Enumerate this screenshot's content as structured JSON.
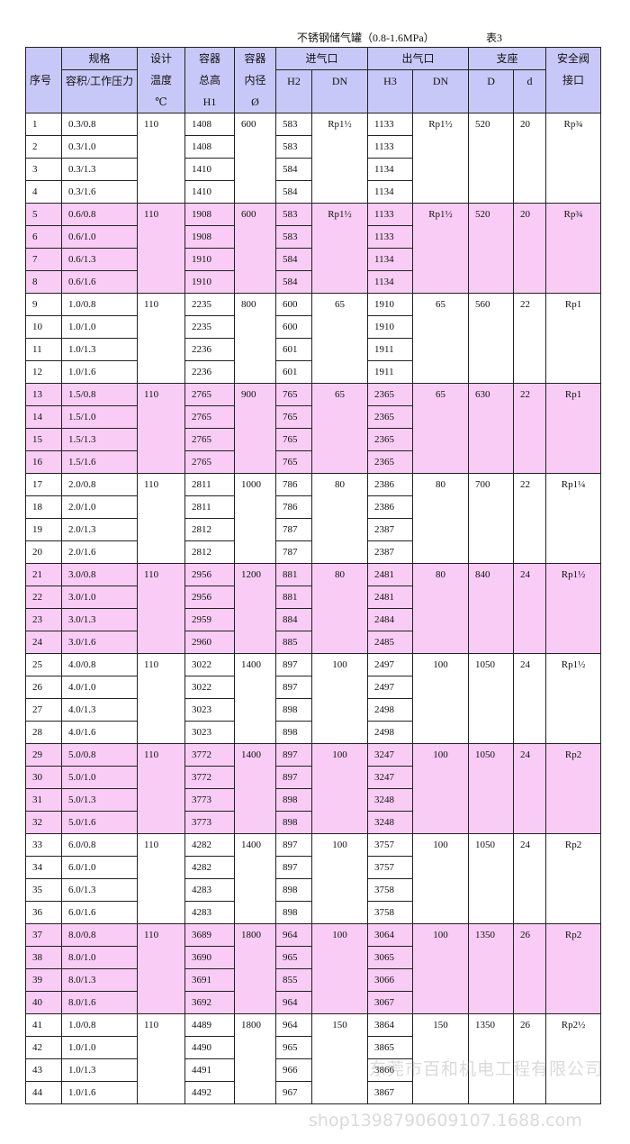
{
  "title": "不锈钢储气罐（0.8-1.6MPa）",
  "table_no": "表3",
  "header": {
    "seq": "序号",
    "spec_top": "规格",
    "spec": "容积/工作压力",
    "temp": [
      "设计",
      "温度",
      "℃"
    ],
    "height": [
      "容器",
      "总高",
      "H1"
    ],
    "diameter": [
      "容器",
      "内径",
      "Ø"
    ],
    "inlet": "进气口",
    "inlet_h": "H2",
    "inlet_dn": "DN",
    "outlet": "出气口",
    "outlet_h": "H3",
    "outlet_dn": "DN",
    "support": "支座",
    "support_D": "D",
    "support_d": "d",
    "valve": [
      "安全阀",
      "接口"
    ]
  },
  "colors": {
    "header": "#c8c8f8",
    "pink": "#f8ccf4"
  },
  "groups": [
    {
      "temp": "110",
      "dia": "600",
      "dn_in": "Rp1½",
      "dn_out": "Rp1½",
      "D": "520",
      "d": "20",
      "valve": "Rp¾",
      "rows": [
        [
          "1",
          "0.3/0.8",
          "1408",
          "583",
          "1133"
        ],
        [
          "2",
          "0.3/1.0",
          "1408",
          "583",
          "1133"
        ],
        [
          "3",
          "0.3/1.3",
          "1410",
          "584",
          "1134"
        ],
        [
          "4",
          "0.3/1.6",
          "1410",
          "584",
          "1134"
        ]
      ]
    },
    {
      "temp": "110",
      "dia": "600",
      "dn_in": "Rp1½",
      "dn_out": "Rp1½",
      "D": "520",
      "d": "20",
      "valve": "Rp¾",
      "rows": [
        [
          "5",
          "0.6/0.8",
          "1908",
          "583",
          "1133"
        ],
        [
          "6",
          "0.6/1.0",
          "1908",
          "583",
          "1133"
        ],
        [
          "7",
          "0.6/1.3",
          "1910",
          "584",
          "1134"
        ],
        [
          "8",
          "0.6/1.6",
          "1910",
          "584",
          "1134"
        ]
      ]
    },
    {
      "temp": "110",
      "dia": "800",
      "dn_in": "65",
      "dn_out": "65",
      "D": "560",
      "d": "22",
      "valve": "Rp1",
      "rows": [
        [
          "9",
          "1.0/0.8",
          "2235",
          "600",
          "1910"
        ],
        [
          "10",
          "1.0/1.0",
          "2235",
          "600",
          "1910"
        ],
        [
          "11",
          "1.0/1.3",
          "2236",
          "601",
          "1911"
        ],
        [
          "12",
          "1.0/1.6",
          "2236",
          "601",
          "1911"
        ]
      ]
    },
    {
      "temp": "110",
      "dia": "900",
      "dn_in": "65",
      "dn_out": "65",
      "D": "630",
      "d": "22",
      "valve": "Rp1",
      "rows": [
        [
          "13",
          "1.5/0.8",
          "2765",
          "765",
          "2365"
        ],
        [
          "14",
          "1.5/1.0",
          "2765",
          "765",
          "2365"
        ],
        [
          "15",
          "1.5/1.3",
          "2765",
          "765",
          "2365"
        ],
        [
          "16",
          "1.5/1.6",
          "2765",
          "765",
          "2365"
        ]
      ]
    },
    {
      "temp": "110",
      "dia": "1000",
      "dn_in": "80",
      "dn_out": "80",
      "D": "700",
      "d": "22",
      "valve": "Rp1¼",
      "rows": [
        [
          "17",
          "2.0/0.8",
          "2811",
          "786",
          "2386"
        ],
        [
          "18",
          "2.0/1.0",
          "2811",
          "786",
          "2386"
        ],
        [
          "19",
          "2.0/1.3",
          "2812",
          "787",
          "2387"
        ],
        [
          "20",
          "2.0/1.6",
          "2812",
          "787",
          "2387"
        ]
      ]
    },
    {
      "temp": "110",
      "dia": "1200",
      "dn_in": "80",
      "dn_out": "80",
      "D": "840",
      "d": "24",
      "valve": "Rp1½",
      "rows": [
        [
          "21",
          "3.0/0.8",
          "2956",
          "881",
          "2481"
        ],
        [
          "22",
          "3.0/1.0",
          "2956",
          "881",
          "2481"
        ],
        [
          "23",
          "3.0/1.3",
          "2959",
          "884",
          "2484"
        ],
        [
          "24",
          "3.0/1.6",
          "2960",
          "885",
          "2485"
        ]
      ]
    },
    {
      "temp": "110",
      "dia": "1400",
      "dn_in": "100",
      "dn_out": "100",
      "D": "1050",
      "d": "24",
      "valve": "Rp1½",
      "rows": [
        [
          "25",
          "4.0/0.8",
          "3022",
          "897",
          "2497"
        ],
        [
          "26",
          "4.0/1.0",
          "3022",
          "897",
          "2497"
        ],
        [
          "27",
          "4.0/1.3",
          "3023",
          "898",
          "2498"
        ],
        [
          "28",
          "4.0/1.6",
          "3023",
          "898",
          "2498"
        ]
      ]
    },
    {
      "temp": "110",
      "dia": "1400",
      "dn_in": "100",
      "dn_out": "100",
      "D": "1050",
      "d": "24",
      "valve": "Rp2",
      "rows": [
        [
          "29",
          "5.0/0.8",
          "3772",
          "897",
          "3247"
        ],
        [
          "30",
          "5.0/1.0",
          "3772",
          "897",
          "3247"
        ],
        [
          "31",
          "5.0/1.3",
          "3773",
          "898",
          "3248"
        ],
        [
          "32",
          "5.0/1.6",
          "3773",
          "898",
          "3248"
        ]
      ]
    },
    {
      "temp": "110",
      "dia": "1400",
      "dn_in": "100",
      "dn_out": "100",
      "D": "1050",
      "d": "24",
      "valve": "Rp2",
      "rows": [
        [
          "33",
          "6.0/0.8",
          "4282",
          "897",
          "3757"
        ],
        [
          "34",
          "6.0/1.0",
          "4282",
          "897",
          "3757"
        ],
        [
          "35",
          "6.0/1.3",
          "4283",
          "898",
          "3758"
        ],
        [
          "36",
          "6.0/1.6",
          "4283",
          "898",
          "3758"
        ]
      ]
    },
    {
      "temp": "110",
      "dia": "1800",
      "dn_in": "100",
      "dn_out": "100",
      "D": "1350",
      "d": "26",
      "valve": "Rp2",
      "rows": [
        [
          "37",
          "8.0/0.8",
          "3689",
          "964",
          "3064"
        ],
        [
          "38",
          "8.0/1.0",
          "3690",
          "965",
          "3065"
        ],
        [
          "39",
          "8.0/1.3",
          "3691",
          "855",
          "3066"
        ],
        [
          "40",
          "8.0/1.6",
          "3692",
          "964",
          "3067"
        ]
      ]
    },
    {
      "temp": "110",
      "dia": "1800",
      "dn_in": "150",
      "dn_out": "150",
      "D": "1350",
      "d": "26",
      "valve": "Rp2½",
      "rows": [
        [
          "41",
          "1.0/0.8",
          "4489",
          "964",
          "3864"
        ],
        [
          "42",
          "1.0/1.0",
          "4490",
          "965",
          "3865"
        ],
        [
          "43",
          "1.0/1.3",
          "4491",
          "966",
          "3866"
        ],
        [
          "44",
          "1.0/1.6",
          "4492",
          "967",
          "3867"
        ]
      ]
    }
  ],
  "watermark": {
    "company": "东莞市百和机电工程有限公司",
    "shop": "shop1398790609107.1688.com"
  }
}
